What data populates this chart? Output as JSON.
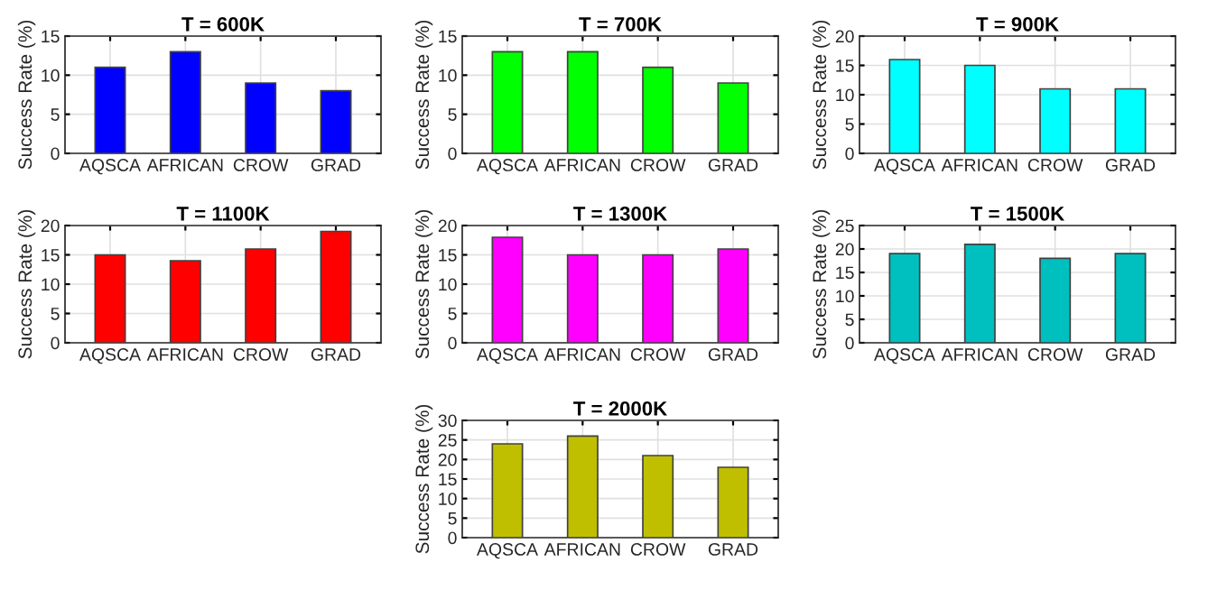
{
  "chart_data": [
    {
      "type": "bar",
      "title": "T = 600K",
      "ylabel": "Success Rate (%)",
      "categories": [
        "AQSCA",
        "AFRICAN",
        "CROW",
        "GRAD"
      ],
      "values": [
        11,
        13,
        9,
        8
      ],
      "color": "#0000ff",
      "ylim": [
        0,
        15
      ],
      "yticks": [
        0,
        5,
        10,
        15
      ],
      "grid": true
    },
    {
      "type": "bar",
      "title": "T = 700K",
      "ylabel": "Success Rate (%)",
      "categories": [
        "AQSCA",
        "AFRICAN",
        "CROW",
        "GRAD"
      ],
      "values": [
        13,
        13,
        11,
        9
      ],
      "color": "#00ff00",
      "ylim": [
        0,
        15
      ],
      "yticks": [
        0,
        5,
        10,
        15
      ],
      "grid": true
    },
    {
      "type": "bar",
      "title": "T = 900K",
      "ylabel": "Success Rate (%)",
      "categories": [
        "AQSCA",
        "AFRICAN",
        "CROW",
        "GRAD"
      ],
      "values": [
        16,
        15,
        11,
        11
      ],
      "color": "#00ffff",
      "ylim": [
        0,
        20
      ],
      "yticks": [
        0,
        5,
        10,
        15,
        20
      ],
      "grid": true
    },
    {
      "type": "bar",
      "title": "T = 1100K",
      "ylabel": "Success Rate (%)",
      "categories": [
        "AQSCA",
        "AFRICAN",
        "CROW",
        "GRAD"
      ],
      "values": [
        15,
        14,
        16,
        19
      ],
      "color": "#ff0000",
      "ylim": [
        0,
        20
      ],
      "yticks": [
        0,
        5,
        10,
        15,
        20
      ],
      "grid": true
    },
    {
      "type": "bar",
      "title": "T = 1300K",
      "ylabel": "Success Rate (%)",
      "categories": [
        "AQSCA",
        "AFRICAN",
        "CROW",
        "GRAD"
      ],
      "values": [
        18,
        15,
        15,
        16
      ],
      "color": "#ff00ff",
      "ylim": [
        0,
        20
      ],
      "yticks": [
        0,
        5,
        10,
        15,
        20
      ],
      "grid": true
    },
    {
      "type": "bar",
      "title": "T = 1500K",
      "ylabel": "Success Rate (%)",
      "categories": [
        "AQSCA",
        "AFRICAN",
        "CROW",
        "GRAD"
      ],
      "values": [
        19,
        21,
        18,
        19
      ],
      "color": "#00bfbf",
      "ylim": [
        0,
        25
      ],
      "yticks": [
        0,
        5,
        10,
        15,
        20,
        25
      ],
      "grid": true
    },
    {
      "type": "bar",
      "title": "T = 2000K",
      "ylabel": "Success Rate (%)",
      "categories": [
        "AQSCA",
        "AFRICAN",
        "CROW",
        "GRAD"
      ],
      "values": [
        24,
        26,
        21,
        18
      ],
      "color": "#bfbf00",
      "ylim": [
        0,
        30
      ],
      "yticks": [
        0,
        5,
        10,
        15,
        20,
        25,
        30
      ],
      "grid": true
    }
  ]
}
